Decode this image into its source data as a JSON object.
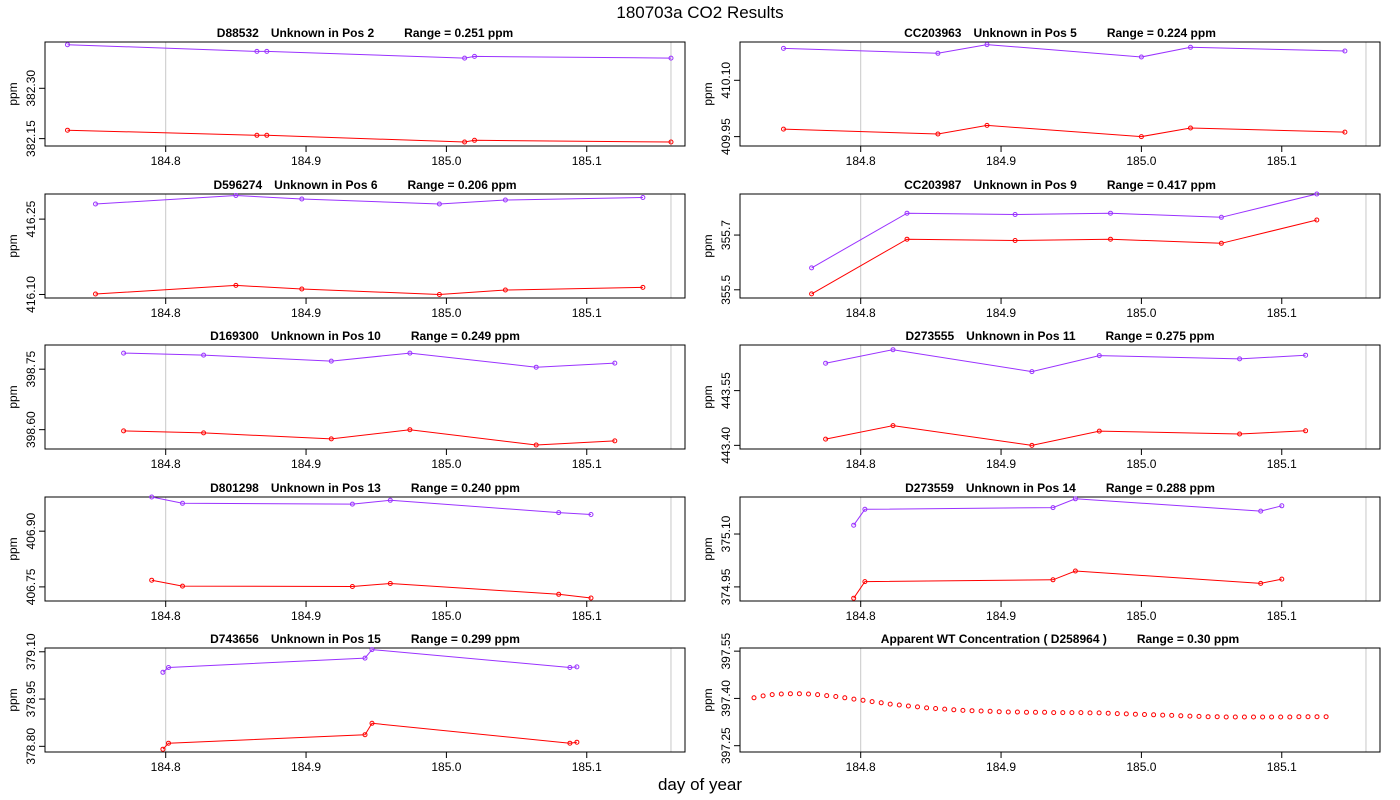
{
  "title": "180703a  CO2 Results",
  "xlabel": "day of year",
  "colors": {
    "series_upper": "#9a32ff",
    "series_lower": "#ff0000",
    "gridline": "#c8c8c8",
    "frame": "#000000"
  },
  "chart_data": [
    {
      "type": "line",
      "title": {
        "id": "D88532",
        "pos": "Unknown in Pos 2",
        "range": "Range =  0.251 ppm"
      },
      "ylabel": "ppm",
      "xlim": [
        184.714,
        185.17
      ],
      "ylim": [
        382.128,
        382.438
      ],
      "yticks": [
        "382.15",
        "382.30"
      ],
      "xticks": [
        "184.8",
        "184.9",
        "185.0",
        "185.1"
      ],
      "series": [
        {
          "name": "upper",
          "x": [
            184.73,
            184.865,
            184.872,
            185.013,
            185.02,
            185.16
          ],
          "y": [
            382.43,
            382.41,
            382.41,
            382.39,
            382.395,
            382.39
          ]
        },
        {
          "name": "lower",
          "x": [
            184.73,
            184.865,
            184.872,
            185.013,
            185.02,
            185.16
          ],
          "y": [
            382.175,
            382.16,
            382.16,
            382.14,
            382.145,
            382.14
          ]
        }
      ]
    },
    {
      "type": "line",
      "title": {
        "id": "CC203963",
        "pos": "Unknown in Pos 5",
        "range": "Range =  0.224 ppm"
      },
      "ylabel": "ppm",
      "xlim": [
        184.714,
        185.17
      ],
      "ylim": [
        409.925,
        410.202
      ],
      "yticks": [
        "409.95",
        "410.10"
      ],
      "xticks": [
        "184.8",
        "184.9",
        "185.0",
        "185.1"
      ],
      "series": [
        {
          "name": "upper",
          "x": [
            184.745,
            184.855,
            184.89,
            185.0,
            185.035,
            185.145
          ],
          "y": [
            410.185,
            410.172,
            410.195,
            410.162,
            410.188,
            410.178
          ]
        },
        {
          "name": "lower",
          "x": [
            184.745,
            184.855,
            184.89,
            185.0,
            185.035,
            185.145
          ],
          "y": [
            409.97,
            409.957,
            409.98,
            409.95,
            409.973,
            409.962
          ]
        }
      ]
    },
    {
      "type": "line",
      "title": {
        "id": "D596274",
        "pos": "Unknown in Pos 6",
        "range": "Range =  0.206 ppm"
      },
      "ylabel": "ppm",
      "xlim": [
        184.714,
        185.17
      ],
      "ylim": [
        416.093,
        416.3
      ],
      "yticks": [
        "416.10",
        "416.25"
      ],
      "xticks": [
        "184.8",
        "184.9",
        "185.0",
        "185.1"
      ],
      "series": [
        {
          "name": "upper",
          "x": [
            184.75,
            184.85,
            184.897,
            184.995,
            185.042,
            185.14
          ],
          "y": [
            416.28,
            416.297,
            416.29,
            416.28,
            416.288,
            416.293
          ]
        },
        {
          "name": "lower",
          "x": [
            184.75,
            184.85,
            184.897,
            184.995,
            185.042,
            185.14
          ],
          "y": [
            416.101,
            416.118,
            416.111,
            416.1,
            416.109,
            416.114
          ]
        }
      ]
    },
    {
      "type": "line",
      "title": {
        "id": "CC203987",
        "pos": "Unknown in Pos 9",
        "range": "Range =  0.417 ppm"
      },
      "ylabel": "ppm",
      "xlim": [
        184.714,
        185.17
      ],
      "ylim": [
        355.47,
        355.85
      ],
      "yticks": [
        "355.5",
        "355.7"
      ],
      "xticks": [
        "184.8",
        "184.9",
        "185.0",
        "185.1"
      ],
      "series": [
        {
          "name": "upper",
          "x": [
            184.765,
            184.833,
            184.91,
            184.978,
            185.057,
            185.125
          ],
          "y": [
            355.58,
            355.78,
            355.775,
            355.78,
            355.765,
            355.85
          ]
        },
        {
          "name": "lower",
          "x": [
            184.765,
            184.833,
            184.91,
            184.978,
            185.057,
            185.125
          ],
          "y": [
            355.485,
            355.685,
            355.68,
            355.685,
            355.67,
            355.755
          ]
        }
      ]
    },
    {
      "type": "line",
      "title": {
        "id": "D169300",
        "pos": "Unknown in Pos 10",
        "range": "Range =  0.249 ppm"
      },
      "ylabel": "ppm",
      "xlim": [
        184.714,
        185.17
      ],
      "ylim": [
        398.552,
        398.81
      ],
      "yticks": [
        "398.60",
        "398.75"
      ],
      "xticks": [
        "184.8",
        "184.9",
        "185.0",
        "185.1"
      ],
      "series": [
        {
          "name": "upper",
          "x": [
            184.77,
            184.827,
            184.918,
            184.974,
            185.064,
            185.12
          ],
          "y": [
            398.79,
            398.785,
            398.77,
            398.79,
            398.755,
            398.765
          ]
        },
        {
          "name": "lower",
          "x": [
            184.77,
            184.827,
            184.918,
            184.974,
            185.064,
            185.12
          ],
          "y": [
            398.597,
            398.592,
            398.577,
            398.6,
            398.562,
            398.572
          ]
        }
      ]
    },
    {
      "type": "line",
      "title": {
        "id": "D273555",
        "pos": "Unknown in Pos 11",
        "range": "Range =  0.275 ppm"
      },
      "ylabel": "ppm",
      "xlim": [
        184.714,
        185.17
      ],
      "ylim": [
        443.39,
        443.675
      ],
      "yticks": [
        "443.40",
        "443.55"
      ],
      "xticks": [
        "184.8",
        "184.9",
        "185.0",
        "185.1"
      ],
      "series": [
        {
          "name": "upper",
          "x": [
            184.775,
            184.823,
            184.922,
            184.97,
            185.07,
            185.117
          ],
          "y": [
            443.625,
            443.662,
            443.602,
            443.646,
            443.637,
            443.647
          ]
        },
        {
          "name": "lower",
          "x": [
            184.775,
            184.823,
            184.922,
            184.97,
            185.07,
            185.117
          ],
          "y": [
            443.417,
            443.454,
            443.4,
            443.439,
            443.431,
            443.44
          ]
        }
      ]
    },
    {
      "type": "line",
      "title": {
        "id": "D801298",
        "pos": "Unknown in Pos 13",
        "range": "Range =  0.240 ppm"
      },
      "ylabel": "ppm",
      "xlim": [
        184.714,
        185.17
      ],
      "ylim": [
        406.712,
        406.992
      ],
      "yticks": [
        "406.75",
        "406.90"
      ],
      "xticks": [
        "184.8",
        "184.9",
        "185.0",
        "185.1"
      ],
      "series": [
        {
          "name": "upper",
          "x": [
            184.79,
            184.812,
            184.933,
            184.96,
            185.08,
            185.103
          ],
          "y": [
            406.992,
            406.975,
            406.973,
            406.983,
            406.95,
            406.945
          ]
        },
        {
          "name": "lower",
          "x": [
            184.79,
            184.812,
            184.933,
            184.96,
            185.08,
            185.103
          ],
          "y": [
            406.768,
            406.752,
            406.751,
            406.759,
            406.73,
            406.72
          ]
        }
      ]
    },
    {
      "type": "line",
      "title": {
        "id": "D273559",
        "pos": "Unknown in Pos 14",
        "range": "Range =  0.288 ppm"
      },
      "ylabel": "ppm",
      "xlim": [
        184.714,
        185.17
      ],
      "ylim": [
        374.91,
        375.205
      ],
      "yticks": [
        "374.95",
        "375.10"
      ],
      "xticks": [
        "184.8",
        "184.9",
        "185.0",
        "185.1"
      ],
      "series": [
        {
          "name": "upper",
          "x": [
            184.795,
            184.803,
            184.937,
            184.953,
            185.085,
            185.1
          ],
          "y": [
            375.125,
            375.17,
            375.175,
            375.2,
            375.165,
            375.18
          ]
        },
        {
          "name": "lower",
          "x": [
            184.795,
            184.803,
            184.937,
            184.953,
            185.085,
            185.1
          ],
          "y": [
            374.918,
            374.965,
            374.97,
            374.995,
            374.96,
            374.972
          ]
        }
      ]
    },
    {
      "type": "line",
      "title": {
        "id": "D743656",
        "pos": "Unknown in Pos 15",
        "range": "Range =  0.299 ppm"
      },
      "ylabel": "ppm",
      "xlim": [
        184.714,
        185.17
      ],
      "ylim": [
        378.782,
        379.112
      ],
      "yticks": [
        "378.80",
        "378.95",
        "379.10"
      ],
      "xticks": [
        "184.8",
        "184.9",
        "185.0",
        "185.1"
      ],
      "series": [
        {
          "name": "upper",
          "x": [
            184.798,
            184.802,
            184.942,
            184.947,
            185.088,
            185.093
          ],
          "y": [
            379.035,
            379.05,
            379.08,
            379.107,
            379.05,
            379.052
          ]
        },
        {
          "name": "lower",
          "x": [
            184.798,
            184.802,
            184.942,
            184.947,
            185.088,
            185.093
          ],
          "y": [
            378.791,
            378.81,
            378.837,
            378.873,
            378.81,
            378.813
          ]
        }
      ]
    },
    {
      "type": "scatter",
      "title": {
        "id": "Apparent WT Concentration ( D258964 )",
        "pos": "",
        "range": "Range = 0.30 ppm"
      },
      "ylabel": "ppm",
      "xlim": [
        184.714,
        185.17
      ],
      "ylim": [
        397.23,
        397.56
      ],
      "yticks": [
        "397.25",
        "397.40",
        "397.55"
      ],
      "xticks": [
        "184.8",
        "184.9",
        "185.0",
        "185.1"
      ],
      "series": [
        {
          "name": "WT",
          "x_start": 184.724,
          "x_step": 0.00647,
          "y": [
            397.402,
            397.408,
            397.412,
            397.414,
            397.415,
            397.415,
            397.414,
            397.412,
            397.409,
            397.406,
            397.402,
            397.398,
            397.394,
            397.39,
            397.386,
            397.382,
            397.379,
            397.376,
            397.373,
            397.37,
            397.368,
            397.366,
            397.364,
            397.362,
            397.361,
            397.36,
            397.359,
            397.358,
            397.357,
            397.357,
            397.356,
            397.356,
            397.356,
            397.355,
            397.355,
            397.355,
            397.355,
            397.354,
            397.354,
            397.353,
            397.352,
            397.351,
            397.35,
            397.349,
            397.348,
            397.347,
            397.346,
            397.345,
            397.344,
            397.343,
            397.342,
            397.342,
            397.341,
            397.341,
            397.341,
            397.341,
            397.341,
            397.341,
            397.341,
            397.341,
            397.342,
            397.342,
            397.342,
            397.342
          ]
        }
      ]
    }
  ]
}
